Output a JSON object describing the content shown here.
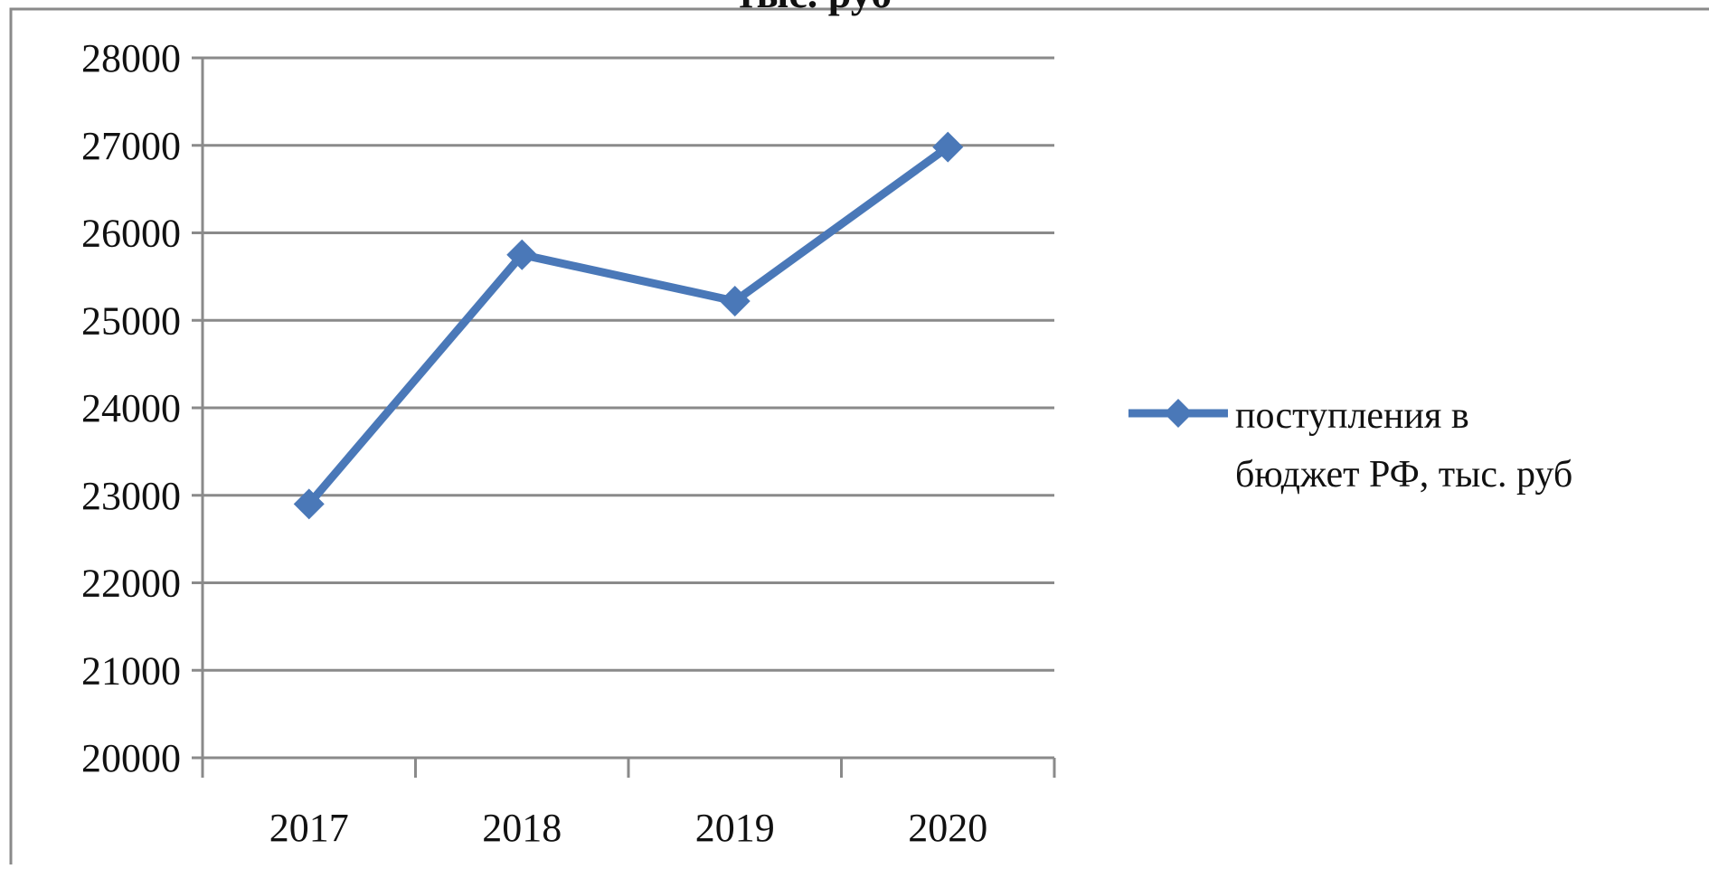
{
  "chart_data": {
    "type": "line",
    "title_fragment": "тыс. руб",
    "categories": [
      "2017",
      "2018",
      "2019",
      "2020"
    ],
    "series": [
      {
        "name": "поступления в бюджет РФ, тыс. руб",
        "name_lines": [
          "поступления в",
          "бюджет РФ, тыс. руб"
        ],
        "values": [
          22900,
          25750,
          25220,
          26980
        ],
        "color": "#4a78b8",
        "marker": "diamond"
      }
    ],
    "yticks": [
      "28000",
      "27000",
      "26000",
      "25000",
      "24000",
      "23000",
      "22000",
      "21000",
      "20000"
    ],
    "ylim": [
      20000,
      28000
    ],
    "grid": true,
    "legend_position": "right"
  }
}
